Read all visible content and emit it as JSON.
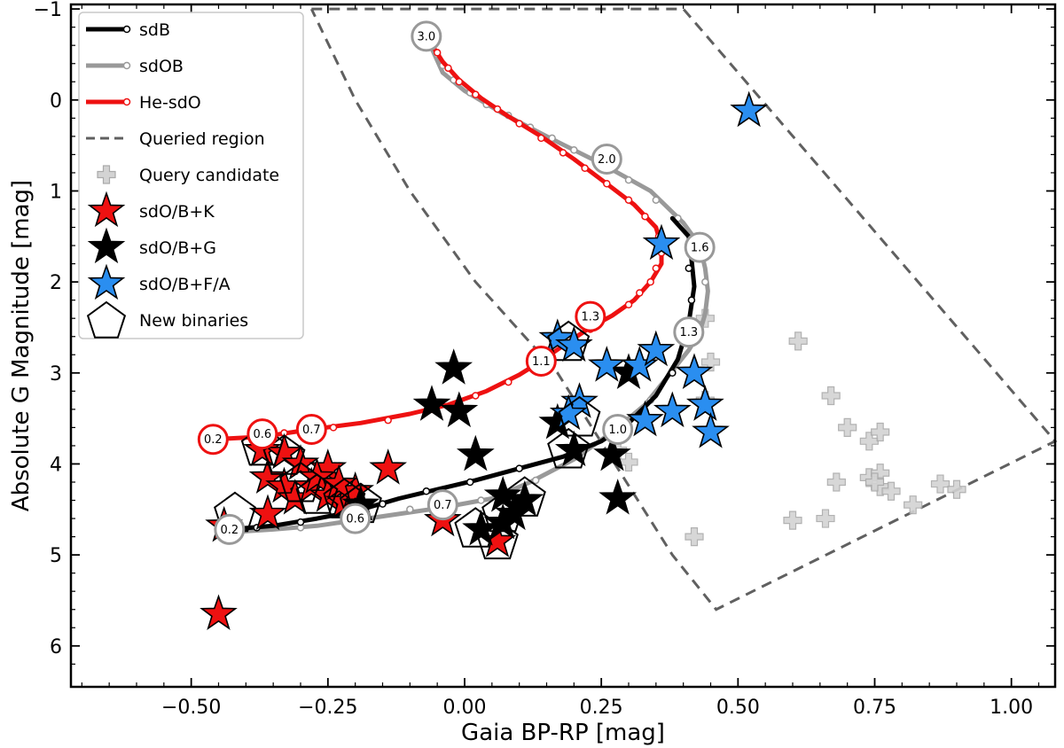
{
  "chart_data": {
    "type": "scatter",
    "xlabel": "Gaia BP-RP [mag]",
    "ylabel": "Absolute G Magnitude [mag]",
    "xlim": [
      -0.72,
      1.08
    ],
    "ylim": [
      6.45,
      -1.05
    ],
    "y_inverted": true,
    "x_ticks": [
      -0.5,
      -0.25,
      0.0,
      0.25,
      0.5,
      0.75,
      1.0
    ],
    "x_tick_labels": [
      "−0.50",
      "−0.25",
      "0.00",
      "0.25",
      "0.50",
      "0.75",
      "1.00"
    ],
    "y_ticks": [
      -1,
      0,
      1,
      2,
      3,
      4,
      5,
      6
    ],
    "y_tick_labels": [
      "−1",
      "0",
      "1",
      "2",
      "3",
      "4",
      "5",
      "6"
    ],
    "grid": false,
    "legend_position": "top-left",
    "colors": {
      "sdB": "#000000",
      "sdOB": "#999999",
      "He-sdO": "#ee1111",
      "queried": "#606060",
      "candidate_fill": "#d3d3d3",
      "candidate_edge": "#aaaaaa",
      "star_K": "#ee1111",
      "star_G": "#000000",
      "star_FA": "#2a8ef0"
    },
    "legend": [
      {
        "label": "sdB",
        "kind": "track",
        "color": "#000000"
      },
      {
        "label": "sdOB",
        "kind": "track",
        "color": "#999999"
      },
      {
        "label": "He-sdO",
        "kind": "track",
        "color": "#ee1111"
      },
      {
        "label": "Queried region",
        "kind": "dashed",
        "color": "#606060"
      },
      {
        "label": "Query candidate",
        "kind": "plus",
        "color": "#d3d3d3"
      },
      {
        "label": "sdO/B+K",
        "kind": "star",
        "color": "#ee1111"
      },
      {
        "label": "sdO/B+G",
        "kind": "star",
        "color": "#000000"
      },
      {
        "label": "sdO/B+F/A",
        "kind": "star",
        "color": "#2a8ef0"
      },
      {
        "label": "New binaries",
        "kind": "pentagon",
        "color": "#000000"
      }
    ],
    "queried_region": [
      [
        -0.28,
        -1.0
      ],
      [
        0.4,
        -1.0
      ],
      [
        1.08,
        3.75
      ],
      [
        0.46,
        5.6
      ],
      [
        0.38,
        5.0
      ],
      [
        0.17,
        3.0
      ],
      [
        0.02,
        2.0
      ],
      [
        -0.1,
        1.0
      ],
      [
        -0.2,
        0.0
      ],
      [
        -0.28,
        -1.0
      ]
    ],
    "tracks": [
      {
        "name": "sdB",
        "color": "#000000",
        "points": [
          [
            -0.43,
            4.72
          ],
          [
            -0.35,
            4.68
          ],
          [
            -0.27,
            4.6
          ],
          [
            -0.2,
            4.52
          ],
          [
            -0.12,
            4.38
          ],
          [
            -0.05,
            4.28
          ],
          [
            0.02,
            4.18
          ],
          [
            0.1,
            4.05
          ],
          [
            0.18,
            3.92
          ],
          [
            0.25,
            3.75
          ],
          [
            0.3,
            3.55
          ],
          [
            0.35,
            3.25
          ],
          [
            0.39,
            2.85
          ],
          [
            0.41,
            2.45
          ],
          [
            0.42,
            2.05
          ],
          [
            0.415,
            1.75
          ],
          [
            0.41,
            1.5
          ],
          [
            0.38,
            1.3
          ]
        ],
        "small_markers": [
          [
            -0.38,
            4.7
          ],
          [
            -0.3,
            4.64
          ],
          [
            -0.22,
            4.55
          ],
          [
            -0.15,
            4.44
          ],
          [
            -0.07,
            4.3
          ],
          [
            0.01,
            4.2
          ],
          [
            0.1,
            4.05
          ],
          [
            0.2,
            3.88
          ],
          [
            0.28,
            3.68
          ],
          [
            0.33,
            3.42
          ],
          [
            0.38,
            3.0
          ],
          [
            0.405,
            2.6
          ],
          [
            0.415,
            2.2
          ],
          [
            0.41,
            1.85
          ]
        ]
      },
      {
        "name": "sdOB",
        "color": "#999999",
        "points": [
          [
            -0.43,
            4.75
          ],
          [
            -0.35,
            4.72
          ],
          [
            -0.27,
            4.68
          ],
          [
            -0.2,
            4.62
          ],
          [
            -0.12,
            4.55
          ],
          [
            -0.04,
            4.48
          ],
          [
            0.05,
            4.38
          ],
          [
            0.12,
            4.2
          ],
          [
            0.2,
            3.95
          ],
          [
            0.27,
            3.65
          ],
          [
            0.33,
            3.35
          ],
          [
            0.37,
            3.05
          ],
          [
            0.41,
            2.75
          ],
          [
            0.43,
            2.55
          ],
          [
            0.44,
            2.35
          ],
          [
            0.445,
            2.1
          ],
          [
            0.44,
            1.85
          ],
          [
            0.43,
            1.6
          ],
          [
            0.4,
            1.35
          ],
          [
            0.34,
            1.0
          ],
          [
            0.25,
            0.7
          ],
          [
            0.15,
            0.4
          ],
          [
            0.07,
            0.15
          ],
          [
            0.0,
            -0.1
          ],
          [
            -0.04,
            -0.3
          ],
          [
            -0.07,
            -0.7
          ]
        ],
        "small_markers": [
          [
            -0.3,
            4.7
          ],
          [
            -0.1,
            4.5
          ],
          [
            0.03,
            4.4
          ],
          [
            0.13,
            4.18
          ],
          [
            0.34,
            3.3
          ],
          [
            0.38,
            2.98
          ],
          [
            0.43,
            2.5
          ],
          [
            0.44,
            2.0
          ],
          [
            0.39,
            1.3
          ],
          [
            0.35,
            1.1
          ],
          [
            0.3,
            0.88
          ],
          [
            0.25,
            0.7
          ],
          [
            0.2,
            0.55
          ],
          [
            0.16,
            0.42
          ],
          [
            0.12,
            0.3
          ],
          [
            0.08,
            0.17
          ],
          [
            0.04,
            0.05
          ],
          [
            0.01,
            -0.08
          ],
          [
            -0.02,
            -0.22
          ],
          [
            -0.04,
            -0.38
          ],
          [
            -0.05,
            -0.5
          ]
        ]
      },
      {
        "name": "He-sdO",
        "color": "#ee1111",
        "points": [
          [
            -0.46,
            3.73
          ],
          [
            -0.37,
            3.7
          ],
          [
            -0.28,
            3.62
          ],
          [
            -0.19,
            3.55
          ],
          [
            -0.1,
            3.45
          ],
          [
            -0.03,
            3.35
          ],
          [
            0.04,
            3.2
          ],
          [
            0.1,
            3.02
          ],
          [
            0.14,
            2.87
          ],
          [
            0.18,
            2.7
          ],
          [
            0.23,
            2.5
          ],
          [
            0.27,
            2.37
          ],
          [
            0.31,
            2.2
          ],
          [
            0.34,
            2.0
          ],
          [
            0.36,
            1.8
          ],
          [
            0.36,
            1.6
          ],
          [
            0.35,
            1.4
          ],
          [
            0.31,
            1.15
          ],
          [
            0.26,
            0.92
          ],
          [
            0.2,
            0.65
          ],
          [
            0.14,
            0.4
          ],
          [
            0.08,
            0.18
          ],
          [
            0.03,
            -0.02
          ],
          [
            -0.01,
            -0.22
          ],
          [
            -0.04,
            -0.42
          ],
          [
            -0.07,
            -0.7
          ]
        ],
        "small_markers": [
          [
            -0.33,
            3.66
          ],
          [
            -0.24,
            3.6
          ],
          [
            -0.14,
            3.52
          ],
          [
            -0.06,
            3.4
          ],
          [
            0.02,
            3.25
          ],
          [
            0.08,
            3.1
          ],
          [
            0.19,
            2.68
          ],
          [
            0.23,
            2.52
          ],
          [
            0.3,
            2.25
          ],
          [
            0.32,
            2.12
          ],
          [
            0.34,
            2.0
          ],
          [
            0.35,
            1.85
          ],
          [
            0.36,
            1.68
          ],
          [
            0.355,
            1.5
          ],
          [
            0.33,
            1.28
          ],
          [
            0.3,
            1.1
          ],
          [
            0.26,
            0.92
          ],
          [
            0.22,
            0.75
          ],
          [
            0.18,
            0.58
          ],
          [
            0.14,
            0.42
          ],
          [
            0.1,
            0.26
          ],
          [
            0.06,
            0.1
          ],
          [
            0.02,
            -0.06
          ],
          [
            -0.01,
            -0.2
          ],
          [
            -0.03,
            -0.35
          ],
          [
            -0.05,
            -0.52
          ]
        ]
      }
    ],
    "mass_markers": [
      {
        "label": "3.0",
        "x": -0.07,
        "y": -0.7,
        "color": "#999999"
      },
      {
        "label": "2.0",
        "x": 0.26,
        "y": 0.65,
        "color": "#999999"
      },
      {
        "label": "1.6",
        "x": 0.43,
        "y": 1.62,
        "color": "#999999"
      },
      {
        "label": "1.3",
        "x": 0.41,
        "y": 2.55,
        "color": "#999999"
      },
      {
        "label": "1.0",
        "x": 0.28,
        "y": 3.62,
        "color": "#999999"
      },
      {
        "label": "0.7",
        "x": -0.04,
        "y": 4.45,
        "color": "#999999"
      },
      {
        "label": "0.6",
        "x": -0.2,
        "y": 4.6,
        "color": "#999999"
      },
      {
        "label": "0.2",
        "x": -0.43,
        "y": 4.72,
        "color": "#999999"
      },
      {
        "label": "1.3",
        "x": 0.23,
        "y": 2.38,
        "color": "#ee1111"
      },
      {
        "label": "1.1",
        "x": 0.14,
        "y": 2.87,
        "color": "#ee1111"
      },
      {
        "label": "0.7",
        "x": -0.28,
        "y": 3.62,
        "color": "#ee1111"
      },
      {
        "label": "0.6",
        "x": -0.37,
        "y": 3.67,
        "color": "#ee1111"
      },
      {
        "label": "0.2",
        "x": -0.46,
        "y": 3.73,
        "color": "#ee1111"
      }
    ],
    "query_candidates": [
      [
        0.44,
        2.4
      ],
      [
        0.45,
        2.88
      ],
      [
        0.44,
        3.3
      ],
      [
        0.61,
        2.65
      ],
      [
        0.67,
        3.25
      ],
      [
        0.7,
        3.6
      ],
      [
        0.74,
        3.75
      ],
      [
        0.76,
        3.65
      ],
      [
        0.68,
        4.2
      ],
      [
        0.74,
        4.15
      ],
      [
        0.76,
        4.1
      ],
      [
        0.76,
        4.25
      ],
      [
        0.78,
        4.3
      ],
      [
        0.75,
        4.2
      ],
      [
        0.82,
        4.45
      ],
      [
        0.87,
        4.22
      ],
      [
        0.9,
        4.28
      ],
      [
        0.6,
        4.62
      ],
      [
        0.66,
        4.6
      ],
      [
        0.42,
        4.8
      ],
      [
        0.3,
        3.98
      ],
      [
        0.28,
        3.85
      ]
    ],
    "stars_K": [
      [
        -0.37,
        3.85
      ],
      [
        -0.33,
        3.88
      ],
      [
        -0.3,
        4.0
      ],
      [
        -0.36,
        4.15
      ],
      [
        -0.33,
        4.25
      ],
      [
        -0.31,
        4.38
      ],
      [
        -0.28,
        4.25
      ],
      [
        -0.25,
        4.05
      ],
      [
        -0.27,
        4.15
      ],
      [
        -0.25,
        4.35
      ],
      [
        -0.22,
        4.42
      ],
      [
        -0.2,
        4.3
      ],
      [
        -0.23,
        4.22
      ],
      [
        -0.14,
        4.05
      ],
      [
        -0.44,
        4.68
      ],
      [
        -0.36,
        4.55
      ],
      [
        -0.04,
        4.62
      ],
      [
        0.06,
        4.85
      ],
      [
        -0.45,
        5.65
      ]
    ],
    "stars_G": [
      [
        -0.02,
        2.95
      ],
      [
        -0.06,
        3.35
      ],
      [
        -0.01,
        3.42
      ],
      [
        0.02,
        3.9
      ],
      [
        0.17,
        3.55
      ],
      [
        0.2,
        3.85
      ],
      [
        0.27,
        3.9
      ],
      [
        0.3,
        3.0
      ],
      [
        0.28,
        4.38
      ],
      [
        0.07,
        4.35
      ],
      [
        0.11,
        4.4
      ],
      [
        0.09,
        4.55
      ],
      [
        0.07,
        4.65
      ],
      [
        0.03,
        4.72
      ],
      [
        -0.19,
        4.45
      ]
    ],
    "stars_FA": [
      [
        0.52,
        0.12
      ],
      [
        0.36,
        1.58
      ],
      [
        0.17,
        2.62
      ],
      [
        0.2,
        2.7
      ],
      [
        0.26,
        2.92
      ],
      [
        0.32,
        2.92
      ],
      [
        0.35,
        2.75
      ],
      [
        0.42,
        3.0
      ],
      [
        0.44,
        3.35
      ],
      [
        0.45,
        3.65
      ],
      [
        0.38,
        3.42
      ],
      [
        0.33,
        3.52
      ],
      [
        0.21,
        3.32
      ],
      [
        0.19,
        3.45
      ]
    ],
    "new_binaries": [
      [
        0.19,
        2.67
      ],
      [
        -0.37,
        3.82
      ],
      [
        -0.33,
        3.92
      ],
      [
        -0.3,
        4.22
      ],
      [
        -0.27,
        4.35
      ],
      [
        -0.22,
        4.4
      ],
      [
        -0.42,
        4.55
      ],
      [
        -0.19,
        4.45
      ],
      [
        0.02,
        4.72
      ],
      [
        0.06,
        4.85
      ],
      [
        0.07,
        4.55
      ],
      [
        0.11,
        4.38
      ],
      [
        0.19,
        3.85
      ],
      [
        0.21,
        3.5
      ]
    ]
  }
}
